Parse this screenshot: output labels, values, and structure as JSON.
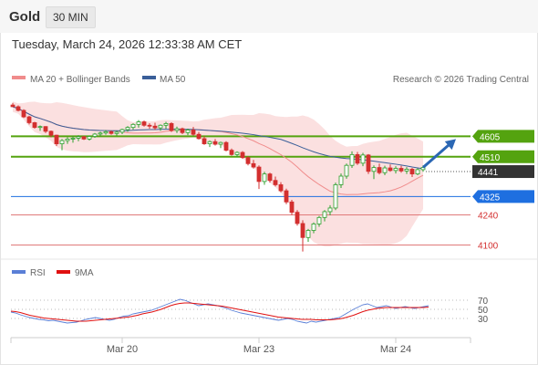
{
  "header": {
    "symbol": "Gold",
    "timeframe": "30 MIN",
    "datetime": "Tuesday, March 24, 2026 12:33:38 AM CET"
  },
  "colors": {
    "ma20": "#f08c8c",
    "ma50": "#3a5f99",
    "band_fill": "#fbe0e0",
    "bull": "#2b9f2b",
    "bear": "#d32f2f",
    "resistance": "#54a30f",
    "pivot": "#1e6fe0",
    "support": "#e07a7a",
    "current": "#333333",
    "rsi": "#5a7fd6",
    "rsi_ma": "#e01010",
    "arrow": "#2b67b4"
  },
  "chart_data": [
    {
      "type": "candlestick",
      "legend": [
        {
          "key": "ma20",
          "label": "MA 20 + Bollinger Bands"
        },
        {
          "key": "ma50",
          "label": "MA 50"
        }
      ],
      "credit": "Research © 2026 Trading Central",
      "ylim": [
        4060,
        4780
      ],
      "x_tick_labels": [
        {
          "label": "Mar 20",
          "index": 20
        },
        {
          "label": "Mar 23",
          "index": 45
        },
        {
          "label": "Mar 24",
          "index": 70
        }
      ],
      "levels": [
        {
          "value": 4605,
          "label": "4605",
          "role": "resistance"
        },
        {
          "value": 4510,
          "label": "4510",
          "role": "resistance"
        },
        {
          "value": 4441,
          "label": "4441",
          "role": "current"
        },
        {
          "value": 4325,
          "label": "4325",
          "role": "pivot"
        },
        {
          "value": 4240,
          "label": "4240",
          "role": "support"
        },
        {
          "value": 4100,
          "label": "4100",
          "role": "support"
        }
      ],
      "projection": {
        "from": [
          75,
          4460
        ],
        "to": [
          81,
          4592
        ]
      },
      "candles": [
        [
          4750,
          4760,
          4740,
          4742
        ],
        [
          4742,
          4748,
          4720,
          4725
        ],
        [
          4725,
          4730,
          4690,
          4695
        ],
        [
          4695,
          4700,
          4660,
          4668
        ],
        [
          4668,
          4672,
          4640,
          4646
        ],
        [
          4646,
          4655,
          4630,
          4650
        ],
        [
          4650,
          4652,
          4620,
          4628
        ],
        [
          4628,
          4632,
          4600,
          4610
        ],
        [
          4610,
          4612,
          4560,
          4570
        ],
        [
          4570,
          4592,
          4540,
          4585
        ],
        [
          4585,
          4600,
          4570,
          4592
        ],
        [
          4592,
          4605,
          4575,
          4596
        ],
        [
          4596,
          4610,
          4582,
          4603
        ],
        [
          4603,
          4606,
          4588,
          4592
        ],
        [
          4592,
          4608,
          4585,
          4604
        ],
        [
          4604,
          4620,
          4598,
          4615
        ],
        [
          4615,
          4626,
          4604,
          4620
        ],
        [
          4620,
          4634,
          4612,
          4626
        ],
        [
          4626,
          4632,
          4612,
          4618
        ],
        [
          4618,
          4630,
          4608,
          4624
        ],
        [
          4624,
          4640,
          4615,
          4636
        ],
        [
          4636,
          4652,
          4626,
          4646
        ],
        [
          4646,
          4665,
          4636,
          4660
        ],
        [
          4660,
          4680,
          4645,
          4672
        ],
        [
          4672,
          4678,
          4650,
          4656
        ],
        [
          4656,
          4665,
          4640,
          4652
        ],
        [
          4652,
          4668,
          4635,
          4644
        ],
        [
          4644,
          4660,
          4630,
          4656
        ],
        [
          4656,
          4672,
          4640,
          4664
        ],
        [
          4664,
          4670,
          4625,
          4632
        ],
        [
          4632,
          4650,
          4620,
          4640
        ],
        [
          4640,
          4645,
          4615,
          4622
        ],
        [
          4622,
          4640,
          4610,
          4634
        ],
        [
          4634,
          4648,
          4608,
          4614
        ],
        [
          4614,
          4625,
          4590,
          4594
        ],
        [
          4594,
          4605,
          4565,
          4570
        ],
        [
          4570,
          4585,
          4555,
          4580
        ],
        [
          4580,
          4592,
          4562,
          4568
        ],
        [
          4568,
          4580,
          4550,
          4576
        ],
        [
          4576,
          4582,
          4535,
          4540
        ],
        [
          4540,
          4548,
          4515,
          4520
        ],
        [
          4520,
          4535,
          4508,
          4530
        ],
        [
          4530,
          4536,
          4500,
          4506
        ],
        [
          4506,
          4512,
          4470,
          4478
        ],
        [
          4478,
          4495,
          4455,
          4462
        ],
        [
          4462,
          4470,
          4360,
          4395
        ],
        [
          4395,
          4440,
          4380,
          4430
        ],
        [
          4430,
          4436,
          4390,
          4400
        ],
        [
          4400,
          4418,
          4372,
          4380
        ],
        [
          4380,
          4392,
          4345,
          4352
        ],
        [
          4352,
          4362,
          4290,
          4300
        ],
        [
          4300,
          4310,
          4240,
          4252
        ],
        [
          4252,
          4262,
          4190,
          4200
        ],
        [
          4200,
          4215,
          4070,
          4135
        ],
        [
          4135,
          4175,
          4115,
          4168
        ],
        [
          4168,
          4205,
          4155,
          4198
        ],
        [
          4198,
          4235,
          4185,
          4228
        ],
        [
          4228,
          4262,
          4210,
          4255
        ],
        [
          4255,
          4285,
          4238,
          4272
        ],
        [
          4272,
          4390,
          4262,
          4380
        ],
        [
          4380,
          4432,
          4365,
          4420
        ],
        [
          4420,
          4478,
          4408,
          4470
        ],
        [
          4470,
          4535,
          4458,
          4520
        ],
        [
          4520,
          4532,
          4472,
          4480
        ],
        [
          4480,
          4528,
          4466,
          4518
        ],
        [
          4518,
          4522,
          4430,
          4442
        ],
        [
          4442,
          4470,
          4406,
          4460
        ],
        [
          4460,
          4478,
          4428,
          4436
        ],
        [
          4436,
          4468,
          4424,
          4458
        ],
        [
          4458,
          4474,
          4440,
          4446
        ],
        [
          4446,
          4466,
          4432,
          4456
        ],
        [
          4456,
          4468,
          4436,
          4444
        ],
        [
          4444,
          4462,
          4430,
          4452
        ],
        [
          4452,
          4458,
          4416,
          4430
        ],
        [
          4430,
          4456,
          4424,
          4450
        ],
        [
          4450,
          4470,
          4440,
          4460
        ]
      ]
    },
    {
      "type": "line",
      "legend": [
        {
          "key": "rsi",
          "label": "RSI"
        },
        {
          "key": "rsi_ma",
          "label": "9MA"
        }
      ],
      "ylim": [
        0,
        100
      ],
      "y_ticks": [
        {
          "value": 70,
          "label": "70"
        },
        {
          "value": 50,
          "label": "50"
        },
        {
          "value": 30,
          "label": "30"
        }
      ],
      "series": [
        {
          "key": "rsi",
          "values": [
            44,
            42,
            38,
            35,
            32,
            30,
            28,
            27,
            25,
            26,
            24,
            22,
            20,
            21,
            22,
            25,
            28,
            30,
            32,
            30,
            28,
            26,
            28,
            32,
            35,
            36,
            40,
            42,
            44,
            46,
            48,
            52,
            56,
            60,
            64,
            68,
            72,
            70,
            66,
            62,
            58,
            60,
            62,
            60,
            58,
            55,
            52,
            48,
            45,
            42,
            40,
            38,
            36,
            34,
            32,
            30,
            28,
            26,
            28,
            30,
            28,
            24,
            22,
            20,
            24,
            22,
            24,
            26,
            28,
            30,
            32,
            38,
            44,
            50,
            55,
            60,
            62,
            58,
            54,
            56,
            58,
            55,
            52,
            54,
            56,
            54,
            52,
            54,
            56,
            58
          ]
        },
        {
          "key": "rsi_ma",
          "values": [
            46,
            45,
            43,
            40,
            37,
            35,
            33,
            31,
            30,
            29,
            28,
            27,
            26,
            25,
            24,
            24,
            24,
            25,
            26,
            27,
            28,
            29,
            30,
            31,
            32,
            33,
            35,
            37,
            40,
            42,
            44,
            47,
            50,
            54,
            58,
            61,
            63,
            64,
            64,
            63,
            62,
            61,
            60,
            59,
            58,
            57,
            55,
            53,
            51,
            49,
            47,
            45,
            43,
            41,
            39,
            37,
            35,
            33,
            32,
            31,
            30,
            29,
            28,
            28,
            28,
            27,
            27,
            27,
            27,
            28,
            29,
            31,
            34,
            37,
            41,
            45,
            48,
            50,
            52,
            53,
            54,
            54,
            54,
            54,
            54,
            54,
            54,
            54,
            54,
            55
          ]
        }
      ]
    }
  ]
}
